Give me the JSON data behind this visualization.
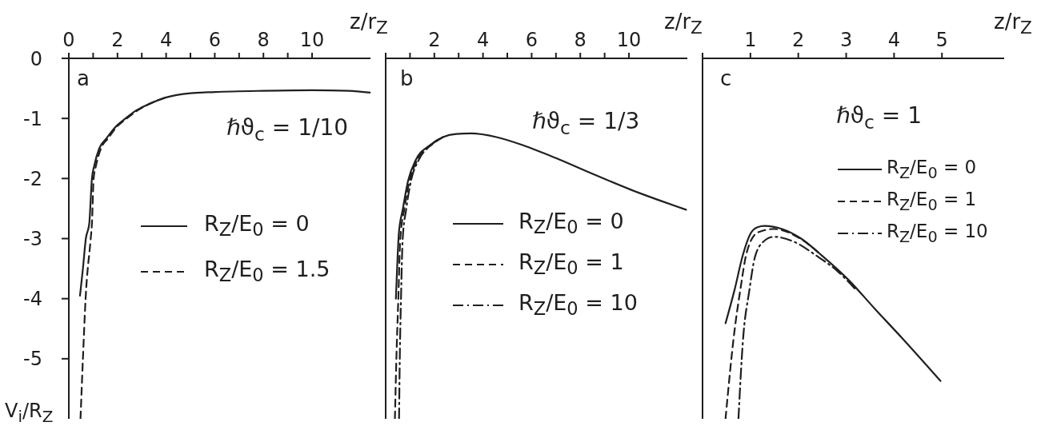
{
  "chart_data": [
    {
      "type": "line",
      "xlabel": "z/r$_{Z}$",
      "ylabel": "V$_{i}$/R$_{Z}$",
      "annotations": [
        "a",
        "ℏϑ$_{c}$ = 1/10"
      ],
      "xlim": [
        0,
        12.4
      ],
      "xticks": [
        0,
        {
          "value": 1,
          "label": null
        },
        2,
        {
          "value": 3,
          "label": null
        },
        4,
        {
          "value": 5,
          "label": null
        },
        6,
        {
          "value": 7,
          "label": null
        },
        8,
        {
          "value": 9,
          "label": null
        },
        10
      ],
      "ylim": [
        -6,
        0
      ],
      "yticks": [
        0,
        -1,
        -2,
        -3,
        -4,
        -5
      ],
      "legend": "right",
      "series": [
        {
          "name": "R$_{Z}$/E$_{0}$ = 0",
          "color": "#1f1f1f",
          "line_style": "solid",
          "x": [
            0.46,
            0.58,
            0.7,
            0.84,
            0.95,
            1.05,
            1.25,
            1.55,
            1.9,
            2.33,
            2.8,
            3.3,
            4.0,
            5.0,
            6.0,
            8.0,
            10.0,
            11.5,
            12.4
          ],
          "values": [
            -3.95,
            -3.5,
            -3.0,
            -2.75,
            -2.0,
            -1.78,
            -1.5,
            -1.33,
            -1.15,
            -1.0,
            -0.86,
            -0.76,
            -0.65,
            -0.58,
            -0.56,
            -0.54,
            -0.53,
            -0.54,
            -0.57
          ]
        },
        {
          "name": "R$_{Z}$/E$_{0}$ = 1.5",
          "color": "#1f1f1f",
          "line_style": "dashed",
          "x": [
            0.48,
            0.58,
            0.69,
            0.9,
            0.95,
            1.02,
            1.12,
            1.32,
            1.62,
            1.95,
            2.38,
            2.85,
            3.3,
            4.0
          ],
          "values": [
            -6.0,
            -5.0,
            -4.0,
            -3.0,
            -2.75,
            -2.0,
            -1.78,
            -1.5,
            -1.33,
            -1.15,
            -1.0,
            -0.86,
            -0.76,
            -0.65
          ]
        }
      ]
    },
    {
      "type": "line",
      "xlabel": "z/r$_{Z}$",
      "annotations": [
        "b",
        "ℏϑ$_{c}$ = 1/3"
      ],
      "xlim": [
        0,
        12.4
      ],
      "xticks": [
        {
          "value": 0,
          "label": null
        },
        {
          "value": 1,
          "label": null
        },
        2,
        {
          "value": 3,
          "label": null
        },
        4,
        {
          "value": 5,
          "label": null
        },
        6,
        {
          "value": 7,
          "label": null
        },
        8,
        {
          "value": 9,
          "label": null
        },
        10
      ],
      "ylim": [
        -6,
        0
      ],
      "yticks": [
        0,
        -1,
        -2,
        -3,
        -4,
        -5
      ],
      "tick_labels": "x",
      "legend": "right",
      "series": [
        {
          "name": "R$_{Z}$/E$_{0}$ = 0",
          "color": "#1f1f1f",
          "line_style": "solid",
          "x": [
            0.42,
            0.47,
            0.54,
            0.7,
            0.92,
            1.24,
            1.8,
            2.36,
            2.9,
            3.5,
            4.55,
            5.67,
            7.0,
            8.43,
            10.1,
            12.35
          ],
          "values": [
            -4.0,
            -3.5,
            -2.92,
            -2.52,
            -2.04,
            -1.69,
            -1.45,
            -1.31,
            -1.26,
            -1.25,
            -1.31,
            -1.45,
            -1.66,
            -1.91,
            -2.19,
            -2.52
          ]
        },
        {
          "name": "R$_{Z}$/E$_{0}$ = 1",
          "color": "#1f1f1f",
          "line_style": "dashed",
          "x": [
            0.38,
            0.44,
            0.52,
            0.6,
            0.76,
            0.98,
            1.3,
            1.85,
            2.36
          ],
          "values": [
            -6.0,
            -5.0,
            -4.0,
            -3.0,
            -2.52,
            -2.04,
            -1.69,
            -1.45,
            -1.31
          ]
        },
        {
          "name": "R$_{Z}$/E$_{0}$ = 10",
          "color": "#1f1f1f",
          "line_style": "dashdot",
          "x": [
            0.55,
            0.58,
            0.63,
            0.7,
            0.84,
            1.04,
            1.36,
            1.85,
            2.36
          ],
          "values": [
            -6.0,
            -5.0,
            -4.0,
            -3.0,
            -2.52,
            -2.04,
            -1.69,
            -1.45,
            -1.31
          ]
        }
      ]
    },
    {
      "type": "line",
      "xlabel": "z/r$_{Z}$",
      "annotations": [
        "c",
        "ℏϑ$_{c}$ = 1"
      ],
      "xlim": [
        0,
        6.3
      ],
      "xticks": [
        {
          "value": 0,
          "label": null
        },
        1,
        2,
        3,
        4,
        5
      ],
      "ylim": [
        -6,
        0
      ],
      "yticks": [
        0,
        -1,
        -2,
        -3,
        -4,
        -5
      ],
      "tick_labels": "x",
      "legend": "right",
      "series": [
        {
          "name": "R$_{Z}$/E$_{0}$ = 0",
          "color": "#1f1f1f",
          "line_style": "solid",
          "x": [
            0.48,
            0.67,
            0.84,
            1.0,
            1.15,
            1.29,
            1.66,
            2.04,
            2.49,
            3.04,
            3.6,
            4.16,
            4.97
          ],
          "values": [
            -4.41,
            -3.85,
            -3.28,
            -2.92,
            -2.81,
            -2.79,
            -2.84,
            -2.99,
            -3.28,
            -3.68,
            -4.17,
            -4.65,
            -5.37
          ]
        },
        {
          "name": "R$_{Z}$/E$_{0}$ = 1",
          "color": "#1f1f1f",
          "line_style": "dashed",
          "x": [
            0.48,
            0.67,
            0.79,
            0.92,
            1.15,
            1.49,
            2.04,
            2.49
          ],
          "values": [
            -6.0,
            -4.52,
            -3.85,
            -3.24,
            -2.9,
            -2.84,
            -3.0,
            -3.28
          ]
        },
        {
          "name": "R$_{Z}$/E$_{0}$ = 10",
          "color": "#1f1f1f",
          "line_style": "dashdot",
          "x": [
            0.75,
            0.84,
            0.98,
            1.09,
            1.26,
            1.49,
            1.93,
            2.37,
            2.83,
            3.2
          ],
          "values": [
            -6.0,
            -4.74,
            -3.85,
            -3.32,
            -3.06,
            -2.97,
            -3.06,
            -3.28,
            -3.55,
            -3.85
          ]
        }
      ]
    }
  ]
}
